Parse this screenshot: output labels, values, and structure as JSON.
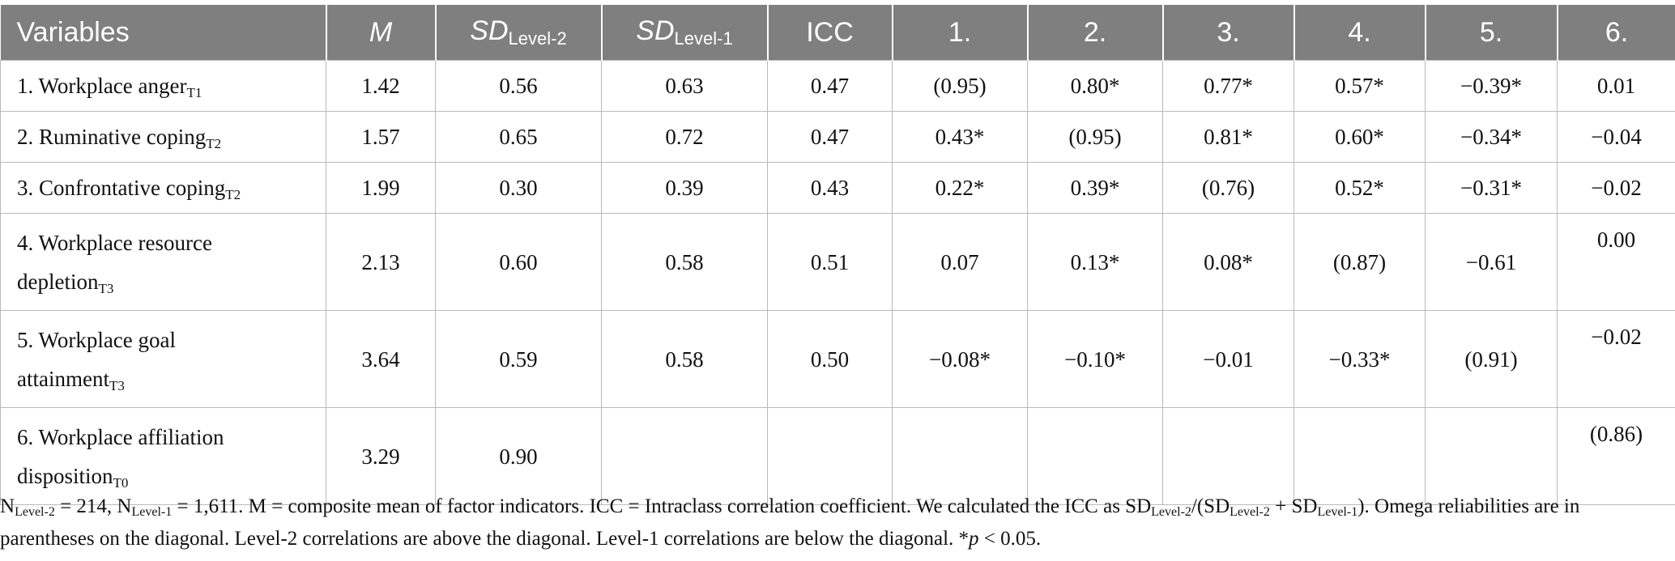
{
  "table": {
    "headers": {
      "variables": "Variables",
      "m": "M",
      "sd_l2_main": "SD",
      "sd_l2_sub": "Level-2",
      "sd_l1_main": "SD",
      "sd_l1_sub": "Level-1",
      "icc": "ICC",
      "c1": "1.",
      "c2": "2.",
      "c3": "3.",
      "c4": "4.",
      "c5": "5.",
      "c6": "6."
    },
    "rows": [
      {
        "label_line1": "1. Workplace anger",
        "label_line2": "",
        "sub": "T1",
        "cells": [
          "1.42",
          "0.56",
          "0.63",
          "0.47",
          "(0.95)",
          "0.80*",
          "0.77*",
          "0.57*",
          "−0.39*",
          "0.01"
        ]
      },
      {
        "label_line1": "2. Ruminative coping",
        "label_line2": "",
        "sub": "T2",
        "cells": [
          "1.57",
          "0.65",
          "0.72",
          "0.47",
          "0.43*",
          "(0.95)",
          "0.81*",
          "0.60*",
          "−0.34*",
          "−0.04"
        ]
      },
      {
        "label_line1": "3. Confrontative coping",
        "label_line2": "",
        "sub": "T2",
        "cells": [
          "1.99",
          "0.30",
          "0.39",
          "0.43",
          "0.22*",
          "0.39*",
          "(0.76)",
          "0.52*",
          "−0.31*",
          "−0.02"
        ]
      },
      {
        "label_line1": "4. Workplace resource",
        "label_line2": "depletion",
        "sub": "T3",
        "cells": [
          "2.13",
          "0.60",
          "0.58",
          "0.51",
          "0.07",
          "0.13*",
          "0.08*",
          "(0.87)",
          "−0.61",
          "0.00"
        ]
      },
      {
        "label_line1": "5. Workplace goal",
        "label_line2": "attainment",
        "sub": "T3",
        "cells": [
          "3.64",
          "0.59",
          "0.58",
          "0.50",
          "−0.08*",
          "−0.10*",
          "−0.01",
          "−0.33*",
          "(0.91)",
          "−0.02"
        ]
      },
      {
        "label_line1": "6. Workplace affiliation",
        "label_line2": "disposition",
        "sub": "T0",
        "cells": [
          "3.29",
          "0.90",
          "",
          "",
          "",
          "",
          "",
          "",
          "",
          "(0.86)"
        ]
      }
    ]
  },
  "note": {
    "n_prefix": "N",
    "n_l2_sub": "Level-2",
    "n_l2_val": " = 214, N",
    "n_l1_sub": "Level-1",
    "n_l1_val": " = 1,611. M = composite mean of factor indicators. ICC = Intraclass correlation coefficient. We calculated the ICC as SD",
    "f_l2_sub": "Level-2",
    "f_mid1": "/(SD",
    "f_l2_sub_b": "Level-2",
    "f_mid2": " + SD",
    "f_l1_sub": "Level-1",
    "f_end": "). Omega reliabilities are in",
    "line2": "parentheses on the diagonal. Level-2 correlations are above the diagonal. Level-1 correlations are below the diagonal. *",
    "p": "p",
    "p_tail": " < 0.05."
  }
}
